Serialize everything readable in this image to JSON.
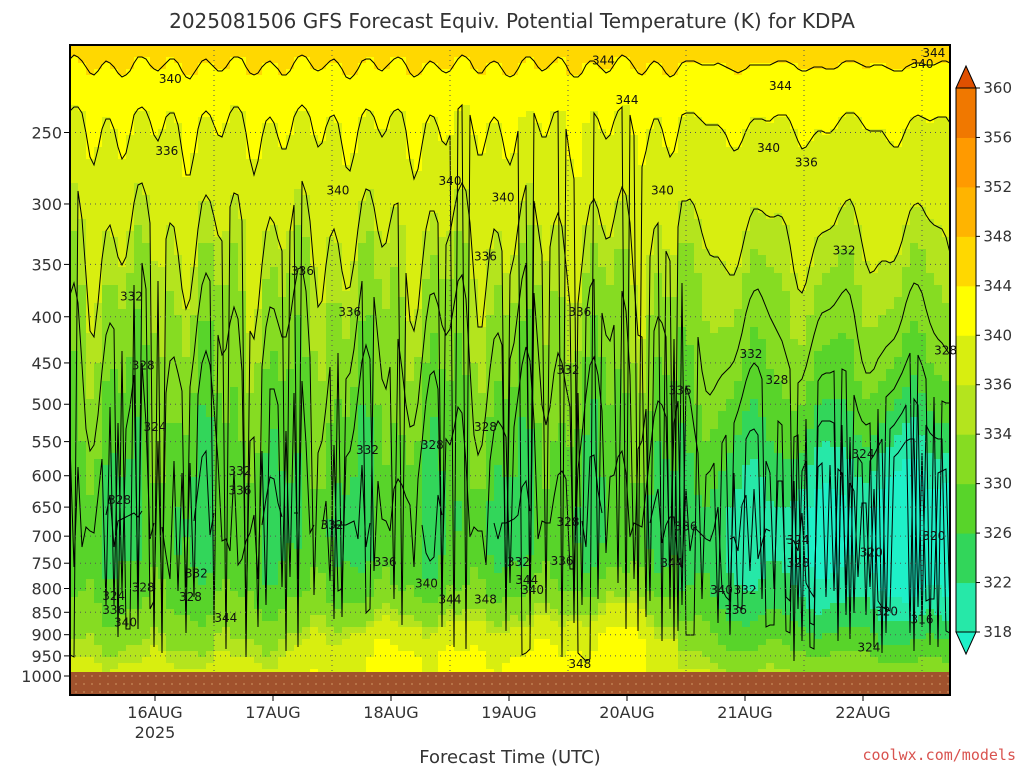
{
  "chart_data": {
    "type": "heatmap",
    "title": "2025081506 GFS Forecast Equiv. Potential Temperature (K) for KDPA",
    "xlabel": "Forecast Time (UTC)",
    "ylabel": "",
    "y_scale": "log",
    "y_reversed": true,
    "ylim": [
      1000,
      200
    ],
    "y_ticks": [
      250,
      300,
      350,
      400,
      450,
      500,
      550,
      600,
      650,
      700,
      750,
      800,
      850,
      900,
      950,
      1000
    ],
    "x_ticks": [
      {
        "label": "16AUG",
        "sub": "2025"
      },
      {
        "label": "17AUG",
        "sub": ""
      },
      {
        "label": "18AUG",
        "sub": ""
      },
      {
        "label": "19AUG",
        "sub": ""
      },
      {
        "label": "20AUG",
        "sub": ""
      },
      {
        "label": "21AUG",
        "sub": ""
      },
      {
        "label": "22AUG",
        "sub": ""
      }
    ],
    "grid": true,
    "colorbar": {
      "levels": [
        318,
        322,
        326,
        330,
        334,
        336,
        340,
        344,
        348,
        352,
        356,
        360
      ],
      "colors": [
        "#26e8a8",
        "#32d65a",
        "#58d42a",
        "#86dc22",
        "#b4e41e",
        "#d8ee10",
        "#ffff00",
        "#ffd800",
        "#ffb400",
        "#ff9a00",
        "#f07800",
        "#e05a00"
      ],
      "under_color": "#1ef0c8",
      "over_color": "#e05000"
    },
    "contour_labels": [
      {
        "t": 0.13,
        "p": 218,
        "v": "340"
      },
      {
        "t": 3.8,
        "p": 208,
        "v": "344"
      },
      {
        "t": 4.0,
        "p": 230,
        "v": "344"
      },
      {
        "t": 6.5,
        "p": 210,
        "v": "340"
      },
      {
        "t": 5.3,
        "p": 222,
        "v": "344"
      },
      {
        "t": 6.6,
        "p": 204,
        "v": "344"
      },
      {
        "t": 0.1,
        "p": 262,
        "v": "336"
      },
      {
        "t": 1.55,
        "p": 290,
        "v": "340"
      },
      {
        "t": 2.5,
        "p": 283,
        "v": "340"
      },
      {
        "t": 2.95,
        "p": 295,
        "v": "340"
      },
      {
        "t": 4.3,
        "p": 290,
        "v": "340"
      },
      {
        "t": 5.2,
        "p": 260,
        "v": "340"
      },
      {
        "t": 5.52,
        "p": 270,
        "v": "336"
      },
      {
        "t": 6.92,
        "p": 270,
        "v": "336"
      },
      {
        "t": 5.84,
        "p": 338,
        "v": "332"
      },
      {
        "t": 7.2,
        "p": 363,
        "v": "332"
      },
      {
        "t": 1.25,
        "p": 356,
        "v": "336"
      },
      {
        "t": 2.8,
        "p": 343,
        "v": "336"
      },
      {
        "t": -0.2,
        "p": 380,
        "v": "332"
      },
      {
        "t": 1.65,
        "p": 395,
        "v": "336"
      },
      {
        "t": 3.6,
        "p": 395,
        "v": "336"
      },
      {
        "t": 5.05,
        "p": 440,
        "v": "332"
      },
      {
        "t": 6.7,
        "p": 436,
        "v": "328"
      },
      {
        "t": 5.27,
        "p": 470,
        "v": "328"
      },
      {
        "t": 3.5,
        "p": 458,
        "v": "332"
      },
      {
        "t": 4.45,
        "p": 483,
        "v": "336"
      },
      {
        "t": -0.1,
        "p": 453,
        "v": "328"
      },
      {
        "t": 0.0,
        "p": 530,
        "v": "324"
      },
      {
        "t": 2.8,
        "p": 530,
        "v": "328"
      },
      {
        "t": 2.35,
        "p": 555,
        "v": "328"
      },
      {
        "t": 6.0,
        "p": 568,
        "v": "324"
      },
      {
        "t": 1.8,
        "p": 562,
        "v": "332"
      },
      {
        "t": 0.72,
        "p": 593,
        "v": "332"
      },
      {
        "t": 0.72,
        "p": 623,
        "v": "336"
      },
      {
        "t": -0.3,
        "p": 638,
        "v": "328"
      },
      {
        "t": 1.5,
        "p": 680,
        "v": "332"
      },
      {
        "t": 3.5,
        "p": 675,
        "v": "328"
      },
      {
        "t": 4.5,
        "p": 683,
        "v": "336"
      },
      {
        "t": 5.45,
        "p": 707,
        "v": "324"
      },
      {
        "t": 6.6,
        "p": 700,
        "v": "320"
      },
      {
        "t": 6.07,
        "p": 730,
        "v": "320"
      },
      {
        "t": 7.08,
        "p": 728,
        "v": "324"
      },
      {
        "t": 1.95,
        "p": 748,
        "v": "336"
      },
      {
        "t": 3.08,
        "p": 748,
        "v": "332"
      },
      {
        "t": 3.45,
        "p": 746,
        "v": "336"
      },
      {
        "t": 4.38,
        "p": 750,
        "v": "344"
      },
      {
        "t": 5.45,
        "p": 750,
        "v": "328"
      },
      {
        "t": 0.35,
        "p": 770,
        "v": "332"
      },
      {
        "t": 2.3,
        "p": 790,
        "v": "340"
      },
      {
        "t": 3.15,
        "p": 783,
        "v": "344"
      },
      {
        "t": 3.2,
        "p": 803,
        "v": "340"
      },
      {
        "t": 4.8,
        "p": 803,
        "v": "340"
      },
      {
        "t": 5.0,
        "p": 803,
        "v": "332"
      },
      {
        "t": -0.35,
        "p": 815,
        "v": "324"
      },
      {
        "t": -0.1,
        "p": 798,
        "v": "328"
      },
      {
        "t": 0.3,
        "p": 818,
        "v": "328"
      },
      {
        "t": -0.35,
        "p": 845,
        "v": "336"
      },
      {
        "t": -0.25,
        "p": 872,
        "v": "340"
      },
      {
        "t": 0.6,
        "p": 863,
        "v": "344"
      },
      {
        "t": 2.5,
        "p": 823,
        "v": "344"
      },
      {
        "t": 2.8,
        "p": 823,
        "v": "348"
      },
      {
        "t": 4.92,
        "p": 845,
        "v": "336"
      },
      {
        "t": 6.2,
        "p": 848,
        "v": "320"
      },
      {
        "t": 6.5,
        "p": 866,
        "v": "316"
      },
      {
        "t": 6.05,
        "p": 930,
        "v": "324"
      },
      {
        "t": 3.6,
        "p": 970,
        "v": "348"
      }
    ]
  },
  "credit": "coolwx.com/models"
}
